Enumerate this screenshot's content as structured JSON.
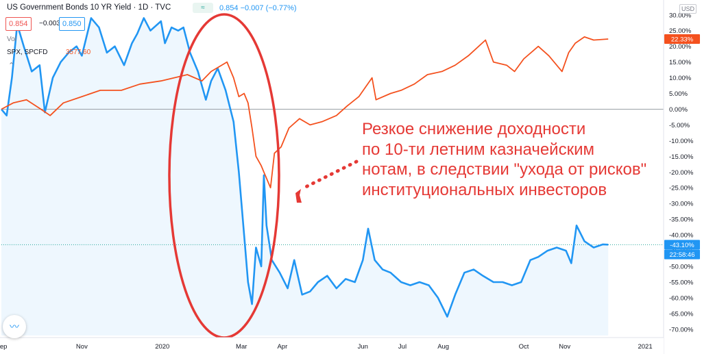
{
  "header": {
    "title": "US Government Bonds 10 YR Yield · 1D · TVC",
    "mode_icon": "≈",
    "price_line": "0.854  −0.007 (−0.77%)",
    "bid": "0.854",
    "spread": "−0.003",
    "ask": "0.850",
    "vol": "Vol",
    "compare_symbol": "SPX, SPCFD",
    "compare_value": "3577.60",
    "eye_icon": "visibility-icon",
    "currency": "USD"
  },
  "annotation": {
    "lines": [
      "Резкое снижение доходности",
      "по 10-ти летним казначейским",
      "нотам, в следствии \"ухода от рисков\"",
      "институциональных инвесторов"
    ]
  },
  "colors": {
    "yield": "#2196f3",
    "spx": "#f4511e",
    "ellipse": "#e53935",
    "annotation": "#e53935",
    "zero_line": "#9aa0a6",
    "last_line": "#26a69a"
  },
  "chart_data": {
    "type": "line",
    "y_unit": "%",
    "yticks": [
      "30.00%",
      "25.00%",
      "20.00%",
      "15.00%",
      "10.00%",
      "5.00%",
      "0.00%",
      "-5.00%",
      "-10.00%",
      "-15.00%",
      "-20.00%",
      "-25.00%",
      "-30.00%",
      "-35.00%",
      "-40.00%",
      "-45.00%",
      "-50.00%",
      "-55.00%",
      "-60.00%",
      "-65.00%",
      "-70.00%"
    ],
    "ylim": [
      -72,
      33
    ],
    "x_range": [
      "2019-09-01",
      "2021-01-15"
    ],
    "xticks": [
      {
        "label": "Sep",
        "date": "2019-09-01"
      },
      {
        "label": "Nov",
        "date": "2019-11-01"
      },
      {
        "label": "2020",
        "date": "2020-01-01"
      },
      {
        "label": "Mar",
        "date": "2020-03-01"
      },
      {
        "label": "Apr",
        "date": "2020-04-01"
      },
      {
        "label": "Jun",
        "date": "2020-06-01"
      },
      {
        "label": "Jul",
        "date": "2020-07-01"
      },
      {
        "label": "Aug",
        "date": "2020-08-01"
      },
      {
        "label": "Oct",
        "date": "2020-10-01"
      },
      {
        "label": "Nov",
        "date": "2020-11-01"
      },
      {
        "label": "2021",
        "date": "2021-01-01"
      }
    ],
    "grid": false,
    "last_labels": [
      {
        "series": "SPX, SPCFD",
        "text": "22.33%",
        "value": 22.33
      },
      {
        "series": "US Government Bonds 10 YR Yield",
        "text": "-43.10%",
        "value": -43.1
      },
      {
        "series": "US Government Bonds 10 YR Yield",
        "text": "22:58:46",
        "value": -46.2
      }
    ],
    "series": [
      {
        "name": "US Government Bonds 10 YR Yield",
        "color": "#2196f3",
        "points": [
          [
            "2019-09-01",
            0
          ],
          [
            "2019-09-05",
            -2
          ],
          [
            "2019-09-09",
            10
          ],
          [
            "2019-09-13",
            27
          ],
          [
            "2019-09-18",
            20
          ],
          [
            "2019-09-24",
            12
          ],
          [
            "2019-09-30",
            14
          ],
          [
            "2019-10-04",
            -1
          ],
          [
            "2019-10-10",
            10
          ],
          [
            "2019-10-16",
            15
          ],
          [
            "2019-10-22",
            18
          ],
          [
            "2019-10-28",
            20
          ],
          [
            "2019-11-01",
            17
          ],
          [
            "2019-11-08",
            29
          ],
          [
            "2019-11-14",
            26
          ],
          [
            "2019-11-20",
            18
          ],
          [
            "2019-11-26",
            20
          ],
          [
            "2019-12-03",
            14
          ],
          [
            "2019-12-09",
            21
          ],
          [
            "2019-12-13",
            24
          ],
          [
            "2019-12-18",
            29
          ],
          [
            "2019-12-23",
            25
          ],
          [
            "2019-12-31",
            28
          ],
          [
            "2020-01-03",
            21
          ],
          [
            "2020-01-08",
            26
          ],
          [
            "2020-01-13",
            25
          ],
          [
            "2020-01-17",
            26
          ],
          [
            "2020-01-22",
            18
          ],
          [
            "2020-01-28",
            12
          ],
          [
            "2020-02-03",
            3
          ],
          [
            "2020-02-07",
            9
          ],
          [
            "2020-02-12",
            13
          ],
          [
            "2020-02-18",
            6
          ],
          [
            "2020-02-24",
            -4
          ],
          [
            "2020-02-28",
            -20
          ],
          [
            "2020-03-03",
            -40
          ],
          [
            "2020-03-06",
            -55
          ],
          [
            "2020-03-09",
            -62
          ],
          [
            "2020-03-12",
            -44
          ],
          [
            "2020-03-16",
            -50
          ],
          [
            "2020-03-18",
            -21
          ],
          [
            "2020-03-20",
            -37
          ],
          [
            "2020-03-24",
            -48
          ],
          [
            "2020-03-30",
            -52
          ],
          [
            "2020-04-05",
            -57
          ],
          [
            "2020-04-10",
            -48
          ],
          [
            "2020-04-16",
            -59
          ],
          [
            "2020-04-22",
            -58
          ],
          [
            "2020-04-28",
            -55
          ],
          [
            "2020-05-05",
            -53
          ],
          [
            "2020-05-12",
            -57
          ],
          [
            "2020-05-19",
            -54
          ],
          [
            "2020-05-26",
            -55
          ],
          [
            "2020-06-01",
            -48
          ],
          [
            "2020-06-05",
            -38
          ],
          [
            "2020-06-10",
            -48
          ],
          [
            "2020-06-16",
            -51
          ],
          [
            "2020-06-22",
            -52
          ],
          [
            "2020-06-30",
            -55
          ],
          [
            "2020-07-07",
            -56
          ],
          [
            "2020-07-14",
            -55
          ],
          [
            "2020-07-21",
            -56
          ],
          [
            "2020-07-28",
            -60
          ],
          [
            "2020-08-04",
            -66
          ],
          [
            "2020-08-10",
            -59
          ],
          [
            "2020-08-17",
            -52
          ],
          [
            "2020-08-24",
            -51
          ],
          [
            "2020-08-31",
            -53
          ],
          [
            "2020-09-08",
            -55
          ],
          [
            "2020-09-15",
            -55
          ],
          [
            "2020-09-22",
            -56
          ],
          [
            "2020-09-29",
            -55
          ],
          [
            "2020-10-06",
            -48
          ],
          [
            "2020-10-12",
            -47
          ],
          [
            "2020-10-19",
            -45
          ],
          [
            "2020-10-26",
            -44
          ],
          [
            "2020-11-02",
            -45
          ],
          [
            "2020-11-06",
            -49
          ],
          [
            "2020-11-10",
            -37
          ],
          [
            "2020-11-16",
            -42
          ],
          [
            "2020-11-23",
            -44
          ],
          [
            "2020-11-30",
            -43
          ],
          [
            "2020-12-04",
            -43.1
          ]
        ]
      },
      {
        "name": "SPX, SPCFD",
        "color": "#f4511e",
        "points": [
          [
            "2019-09-01",
            0
          ],
          [
            "2019-09-10",
            2
          ],
          [
            "2019-09-20",
            3
          ],
          [
            "2019-10-01",
            0
          ],
          [
            "2019-10-08",
            -2
          ],
          [
            "2019-10-18",
            2
          ],
          [
            "2019-11-01",
            4
          ],
          [
            "2019-11-15",
            6
          ],
          [
            "2019-12-01",
            6
          ],
          [
            "2019-12-15",
            8
          ],
          [
            "2019-12-31",
            9
          ],
          [
            "2020-01-10",
            10
          ],
          [
            "2020-01-20",
            11
          ],
          [
            "2020-01-31",
            9
          ],
          [
            "2020-02-07",
            12
          ],
          [
            "2020-02-19",
            15
          ],
          [
            "2020-02-24",
            10
          ],
          [
            "2020-02-28",
            4
          ],
          [
            "2020-03-03",
            5
          ],
          [
            "2020-03-06",
            2
          ],
          [
            "2020-03-09",
            -6
          ],
          [
            "2020-03-12",
            -15
          ],
          [
            "2020-03-16",
            -18
          ],
          [
            "2020-03-18",
            -20
          ],
          [
            "2020-03-23",
            -25
          ],
          [
            "2020-03-26",
            -14
          ],
          [
            "2020-03-31",
            -12
          ],
          [
            "2020-04-06",
            -6
          ],
          [
            "2020-04-14",
            -3
          ],
          [
            "2020-04-22",
            -5
          ],
          [
            "2020-05-01",
            -4
          ],
          [
            "2020-05-12",
            -2
          ],
          [
            "2020-05-20",
            1
          ],
          [
            "2020-05-29",
            4
          ],
          [
            "2020-06-08",
            10
          ],
          [
            "2020-06-11",
            3
          ],
          [
            "2020-06-22",
            5
          ],
          [
            "2020-06-30",
            6
          ],
          [
            "2020-07-10",
            8
          ],
          [
            "2020-07-20",
            11
          ],
          [
            "2020-07-31",
            12
          ],
          [
            "2020-08-10",
            14
          ],
          [
            "2020-08-20",
            17
          ],
          [
            "2020-09-02",
            22
          ],
          [
            "2020-09-08",
            15
          ],
          [
            "2020-09-18",
            14
          ],
          [
            "2020-09-24",
            12
          ],
          [
            "2020-10-01",
            16
          ],
          [
            "2020-10-12",
            20
          ],
          [
            "2020-10-20",
            17
          ],
          [
            "2020-10-30",
            12
          ],
          [
            "2020-11-04",
            18
          ],
          [
            "2020-11-09",
            21
          ],
          [
            "2020-11-16",
            23
          ],
          [
            "2020-11-23",
            22
          ],
          [
            "2020-12-04",
            22.33
          ]
        ]
      }
    ]
  }
}
